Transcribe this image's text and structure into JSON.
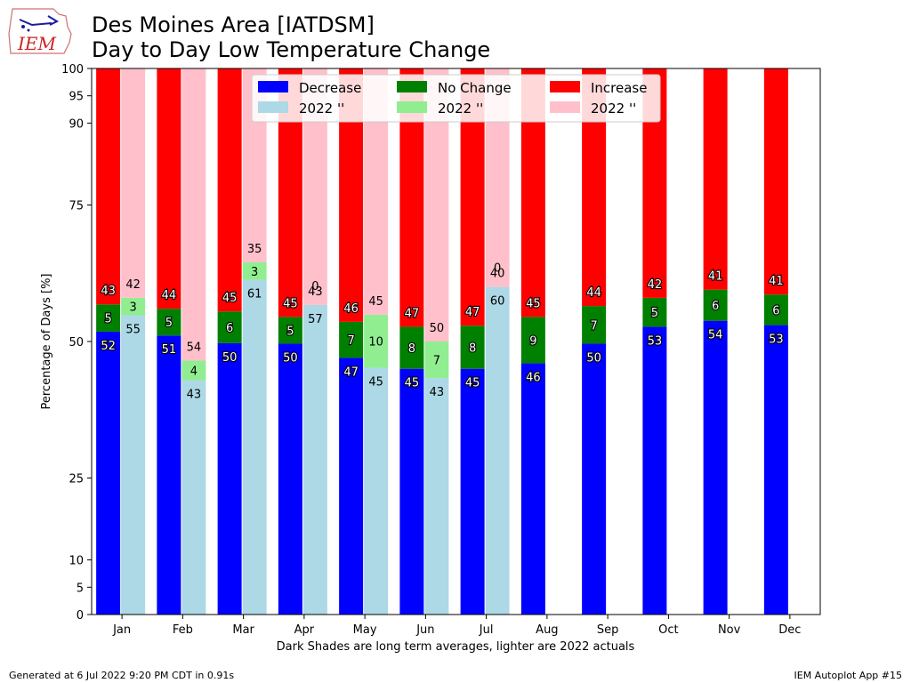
{
  "header": {
    "title_line1": "Des Moines Area [IATDSM]",
    "title_line2": "Day to Day Low Temperature Change",
    "logo_text": "IEM",
    "logo_colors": {
      "outline": "#d07070",
      "text": "#cc2222",
      "icon": "#1a1aa0"
    }
  },
  "footer": {
    "left": "Generated at 6 Jul 2022 9:20 PM CDT in 0.91s",
    "right": "IEM Autoplot App #15"
  },
  "chart_data": {
    "type": "bar",
    "stacked": true,
    "title": "Des Moines Area [IATDSM]\nDay to Day Low Temperature Change",
    "xlabel": "Dark Shades are long term averages, lighter are 2022 actuals",
    "ylabel": "Percentage of Days [%]",
    "ylim": [
      0,
      100
    ],
    "yticks": [
      0,
      5,
      10,
      25,
      50,
      75,
      90,
      95,
      100
    ],
    "categories": [
      "Jan",
      "Feb",
      "Mar",
      "Apr",
      "May",
      "Jun",
      "Jul",
      "Aug",
      "Sep",
      "Oct",
      "Nov",
      "Dec"
    ],
    "legend": {
      "placement": "top-center",
      "columns": 3,
      "entries": [
        {
          "label": "Decrease",
          "color": "#0000ff"
        },
        {
          "label": "2022 ''",
          "color": "#add8e6"
        },
        {
          "label": "No Change",
          "color": "#008000"
        },
        {
          "label": "2022 ''",
          "color": "#90ee90"
        },
        {
          "label": "Increase",
          "color": "#ff0000"
        },
        {
          "label": "2022 ''",
          "color": "#ffc0cb"
        }
      ]
    },
    "long_term": {
      "colors": {
        "decrease": "#0000ff",
        "no_change": "#008000",
        "increase": "#ff0000"
      },
      "decrease": [
        51.8,
        51.1,
        49.7,
        49.6,
        47.0,
        45.0,
        45.0,
        46.0,
        49.6,
        52.7,
        53.8,
        53.0
      ],
      "no_change": [
        5.0,
        4.9,
        5.8,
        4.9,
        6.6,
        7.7,
        7.9,
        8.5,
        6.9,
        5.3,
        5.7,
        5.6
      ],
      "increase": [
        43.2,
        44.0,
        44.5,
        45.5,
        46.4,
        47.3,
        47.1,
        45.5,
        43.5,
        42.0,
        40.5,
        41.4
      ],
      "labels": {
        "decrease": [
          "52",
          "51",
          "50",
          "50",
          "47",
          "45",
          "45",
          "46",
          "50",
          "53",
          "54",
          "53"
        ],
        "no_change": [
          "5",
          "5",
          "6",
          "5",
          "7",
          "8",
          "8",
          "9",
          "7",
          "5",
          "6",
          "6"
        ],
        "increase": [
          "43",
          "44",
          "45",
          "45",
          "46",
          "47",
          "47",
          "45",
          "44",
          "42",
          "41",
          "41"
        ]
      }
    },
    "year_2022": {
      "colors": {
        "decrease": "#add8e6",
        "no_change": "#90ee90",
        "increase": "#ffc0cb"
      },
      "decrease": [
        54.8,
        42.9,
        61.3,
        56.7,
        45.2,
        43.3,
        60.0
      ],
      "no_change": [
        3.2,
        3.6,
        3.2,
        0.0,
        9.7,
        6.7,
        0.0
      ],
      "increase": [
        42.0,
        53.5,
        35.5,
        43.3,
        45.1,
        50.0,
        40.0
      ],
      "labels": {
        "decrease": [
          "55",
          "43",
          "61",
          "57",
          "45",
          "43",
          "60"
        ],
        "no_change": [
          "3",
          "4",
          "3",
          "0",
          "10",
          "7",
          "0"
        ],
        "increase": [
          "42",
          "54",
          "35",
          "43",
          "45",
          "50",
          "40"
        ]
      }
    }
  }
}
